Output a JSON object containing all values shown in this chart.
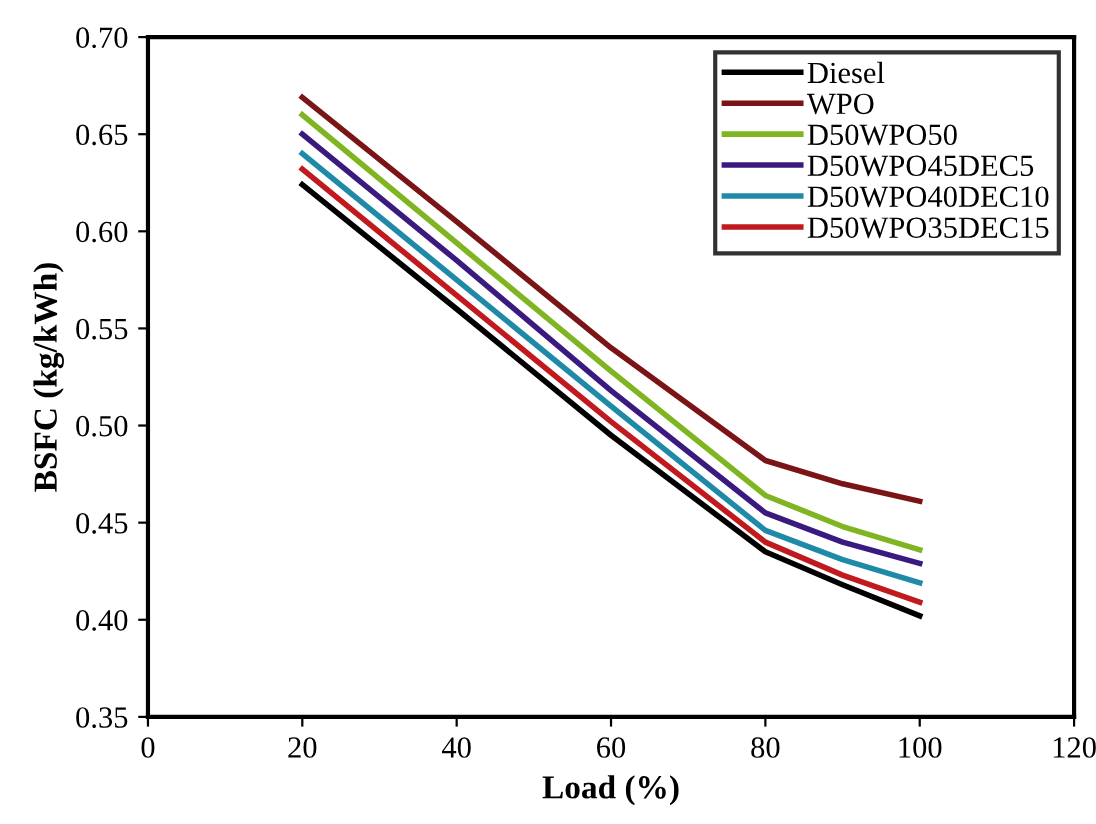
{
  "chart_data": {
    "type": "line",
    "xlabel": "Load (%)",
    "ylabel": "BSFC (kg/kWh)",
    "x": [
      20,
      40,
      60,
      80,
      90,
      100
    ],
    "series": [
      {
        "name": "Diesel",
        "color": "#000000",
        "values": [
          0.624,
          0.56,
          0.495,
          0.435,
          0.418,
          0.402
        ]
      },
      {
        "name": "WPO",
        "color": "#7b1416",
        "values": [
          0.669,
          0.605,
          0.54,
          0.482,
          0.47,
          0.461
        ]
      },
      {
        "name": "D50WPO50",
        "color": "#7fb520",
        "values": [
          0.66,
          0.594,
          0.528,
          0.464,
          0.448,
          0.436
        ]
      },
      {
        "name": "D50WPO45DEC5",
        "color": "#3b1a80",
        "values": [
          0.65,
          0.585,
          0.518,
          0.455,
          0.44,
          0.429
        ]
      },
      {
        "name": "D50WPO40DEC10",
        "color": "#1f8aa8",
        "values": [
          0.64,
          0.575,
          0.51,
          0.446,
          0.431,
          0.419
        ]
      },
      {
        "name": "D50WPO35DEC15",
        "color": "#c0191e",
        "values": [
          0.632,
          0.567,
          0.502,
          0.44,
          0.423,
          0.409
        ]
      }
    ],
    "xlim": [
      0,
      120
    ],
    "xticks": [
      0,
      20,
      40,
      60,
      80,
      100,
      120
    ],
    "ylim": [
      0.35,
      0.7
    ],
    "yticks": [
      {
        "value": 0.35,
        "label": "0.35"
      },
      {
        "value": 0.4,
        "label": "0.40"
      },
      {
        "value": 0.45,
        "label": "0.45"
      },
      {
        "value": 0.5,
        "label": "0.50"
      },
      {
        "value": 0.55,
        "label": "0.55"
      },
      {
        "value": 0.6,
        "label": "0.60"
      },
      {
        "value": 0.65,
        "label": "0.65"
      },
      {
        "value": 0.7,
        "label": "0.70"
      }
    ],
    "legend": "top right",
    "grid": false,
    "marker": "none",
    "line_style": "solid"
  }
}
